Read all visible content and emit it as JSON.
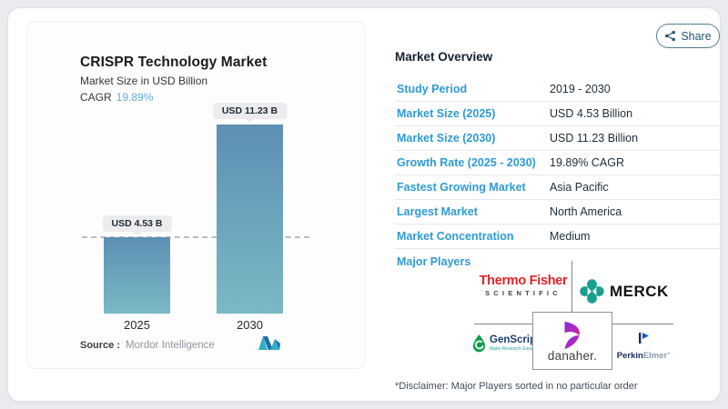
{
  "share": {
    "label": "Share"
  },
  "chart": {
    "title": "CRISPR Technology Market",
    "subtitle": "Market Size in USD Billion",
    "cagr_label": "CAGR",
    "cagr_value": "19.89%",
    "source_label": "Source :",
    "source_value": "Mordor Intelligence",
    "bars": [
      {
        "year": "2025",
        "label": "USD 4.53 B"
      },
      {
        "year": "2030",
        "label": "USD 11.23 B"
      }
    ]
  },
  "chart_data": {
    "type": "bar",
    "categories": [
      "2025",
      "2030"
    ],
    "values": [
      4.53,
      11.23
    ],
    "title": "CRISPR Technology Market",
    "xlabel": "",
    "ylabel": "Market Size in USD Billion",
    "ylim": [
      0,
      11.8
    ],
    "annotations": [
      "USD 4.53 B",
      "USD 11.23 B"
    ],
    "reference_line": 4.53,
    "grid": false,
    "legend": false,
    "bar_gradient": [
      "#5d8fb4",
      "#7bb9c5"
    ]
  },
  "overview": {
    "heading": "Market Overview",
    "rows": [
      {
        "label": "Study Period",
        "value": "2019 - 2030"
      },
      {
        "label": "Market Size (2025)",
        "value": "USD 4.53 Billion"
      },
      {
        "label": "Market Size (2030)",
        "value": "USD 11.23 Billion"
      },
      {
        "label": "Growth Rate (2025 - 2030)",
        "value": "19.89% CAGR"
      },
      {
        "label": "Fastest Growing Market",
        "value": "Asia Pacific"
      },
      {
        "label": "Largest Market",
        "value": "North America"
      },
      {
        "label": "Market Concentration",
        "value": "Medium"
      }
    ],
    "major_players_label": "Major Players",
    "players": {
      "thermofisher": {
        "name": "Thermo Fisher",
        "sub": "SCIENTIFIC"
      },
      "merck": {
        "name": "MERCK"
      },
      "genscript": {
        "name": "GenScript",
        "tagline": "Make Research Easy"
      },
      "danaher": {
        "name": "danaher."
      },
      "perkinelmer": {
        "name_bold": "Perkin",
        "name_light": "Elmer’"
      }
    },
    "disclaimer": "*Disclaimer: Major Players sorted in no particular order"
  },
  "colors": {
    "accent_blue": "#2e9bd4",
    "cagr_blue": "#64aed5",
    "bar_top": "#5d8fb4",
    "bar_bottom": "#7bb9c5",
    "share_teal": "#24576a",
    "merck_teal": "#17a08e",
    "thermo_red": "#e32226",
    "genscript_green": "#0f9d4c",
    "danaher_purple": "#7b2fe0",
    "danaher_magenta": "#d9229e"
  }
}
